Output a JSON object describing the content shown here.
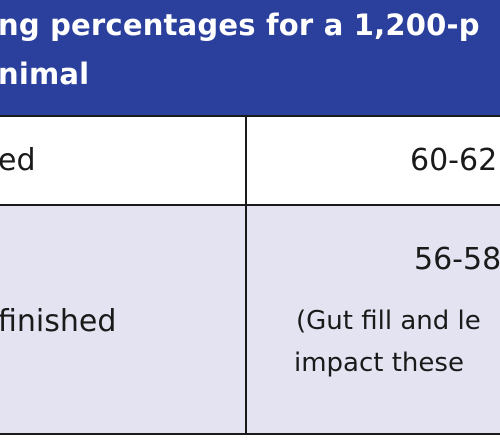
{
  "header": {
    "line1": "ng percentages for a 1,200-p",
    "line2": "nimal",
    "background_color": "#2b3f9c"
  },
  "rows": [
    {
      "label": "ed",
      "value": "60-62"
    },
    {
      "label": " finished",
      "value": "56-58",
      "note_line1": "(Gut fill and le",
      "note_line2": "impact these"
    }
  ],
  "colors": {
    "row_alt": "#e3e3f2",
    "border": "#1a1a1a"
  }
}
